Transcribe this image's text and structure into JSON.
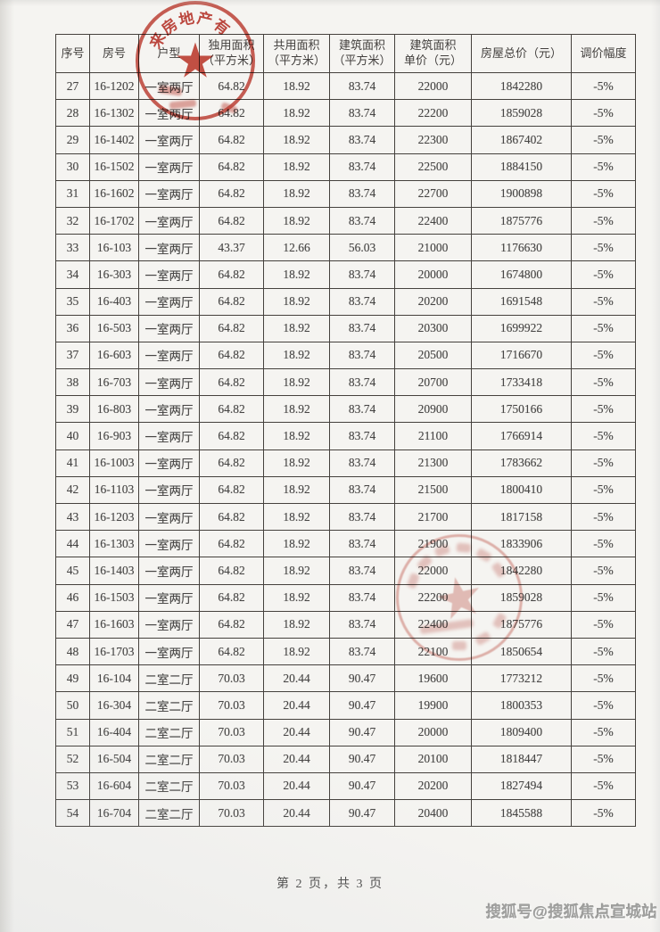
{
  "document": {
    "footer": "第 2 页，共 3 页",
    "watermark": "搜狐号@搜狐焦点宣城站"
  },
  "table": {
    "columns": [
      "序号",
      "房号",
      "户型",
      "独用面积\n（平方米）",
      "共用面积\n（平方米）",
      "建筑面积\n（平方米）",
      "建筑面积\n单价（元）",
      "房屋总价（元）",
      "调价幅度"
    ],
    "rows": [
      [
        "27",
        "16-1202",
        "一室两厅",
        "64.82",
        "18.92",
        "83.74",
        "22000",
        "1842280",
        "-5%"
      ],
      [
        "28",
        "16-1302",
        "一室两厅",
        "64.82",
        "18.92",
        "83.74",
        "22200",
        "1859028",
        "-5%"
      ],
      [
        "29",
        "16-1402",
        "一室两厅",
        "64.82",
        "18.92",
        "83.74",
        "22300",
        "1867402",
        "-5%"
      ],
      [
        "30",
        "16-1502",
        "一室两厅",
        "64.82",
        "18.92",
        "83.74",
        "22500",
        "1884150",
        "-5%"
      ],
      [
        "31",
        "16-1602",
        "一室两厅",
        "64.82",
        "18.92",
        "83.74",
        "22700",
        "1900898",
        "-5%"
      ],
      [
        "32",
        "16-1702",
        "一室两厅",
        "64.82",
        "18.92",
        "83.74",
        "22400",
        "1875776",
        "-5%"
      ],
      [
        "33",
        "16-103",
        "一室两厅",
        "43.37",
        "12.66",
        "56.03",
        "21000",
        "1176630",
        "-5%"
      ],
      [
        "34",
        "16-303",
        "一室两厅",
        "64.82",
        "18.92",
        "83.74",
        "20000",
        "1674800",
        "-5%"
      ],
      [
        "35",
        "16-403",
        "一室两厅",
        "64.82",
        "18.92",
        "83.74",
        "20200",
        "1691548",
        "-5%"
      ],
      [
        "36",
        "16-503",
        "一室两厅",
        "64.82",
        "18.92",
        "83.74",
        "20300",
        "1699922",
        "-5%"
      ],
      [
        "37",
        "16-603",
        "一室两厅",
        "64.82",
        "18.92",
        "83.74",
        "20500",
        "1716670",
        "-5%"
      ],
      [
        "38",
        "16-703",
        "一室两厅",
        "64.82",
        "18.92",
        "83.74",
        "20700",
        "1733418",
        "-5%"
      ],
      [
        "39",
        "16-803",
        "一室两厅",
        "64.82",
        "18.92",
        "83.74",
        "20900",
        "1750166",
        "-5%"
      ],
      [
        "40",
        "16-903",
        "一室两厅",
        "64.82",
        "18.92",
        "83.74",
        "21100",
        "1766914",
        "-5%"
      ],
      [
        "41",
        "16-1003",
        "一室两厅",
        "64.82",
        "18.92",
        "83.74",
        "21300",
        "1783662",
        "-5%"
      ],
      [
        "42",
        "16-1103",
        "一室两厅",
        "64.82",
        "18.92",
        "83.74",
        "21500",
        "1800410",
        "-5%"
      ],
      [
        "43",
        "16-1203",
        "一室两厅",
        "64.82",
        "18.92",
        "83.74",
        "21700",
        "1817158",
        "-5%"
      ],
      [
        "44",
        "16-1303",
        "一室两厅",
        "64.82",
        "18.92",
        "83.74",
        "21900",
        "1833906",
        "-5%"
      ],
      [
        "45",
        "16-1403",
        "一室两厅",
        "64.82",
        "18.92",
        "83.74",
        "22000",
        "1842280",
        "-5%"
      ],
      [
        "46",
        "16-1503",
        "一室两厅",
        "64.82",
        "18.92",
        "83.74",
        "22200",
        "1859028",
        "-5%"
      ],
      [
        "47",
        "16-1603",
        "一室两厅",
        "64.82",
        "18.92",
        "83.74",
        "22400",
        "1875776",
        "-5%"
      ],
      [
        "48",
        "16-1703",
        "一室两厅",
        "64.82",
        "18.92",
        "83.74",
        "22100",
        "1850654",
        "-5%"
      ],
      [
        "49",
        "16-104",
        "二室二厅",
        "70.03",
        "20.44",
        "90.47",
        "19600",
        "1773212",
        "-5%"
      ],
      [
        "50",
        "16-304",
        "二室二厅",
        "70.03",
        "20.44",
        "90.47",
        "19900",
        "1800353",
        "-5%"
      ],
      [
        "51",
        "16-404",
        "二室二厅",
        "70.03",
        "20.44",
        "90.47",
        "20000",
        "1809400",
        "-5%"
      ],
      [
        "52",
        "16-504",
        "二室二厅",
        "70.03",
        "20.44",
        "90.47",
        "20100",
        "1818447",
        "-5%"
      ],
      [
        "53",
        "16-604",
        "二室二厅",
        "70.03",
        "20.44",
        "90.47",
        "20200",
        "1827494",
        "-5%"
      ],
      [
        "54",
        "16-704",
        "二室二厅",
        "70.03",
        "20.44",
        "90.47",
        "20400",
        "1845588",
        "-5%"
      ]
    ]
  },
  "stamps": {
    "top": {
      "arc_text": "来房地产有",
      "color": "#c13d32",
      "legible": true
    },
    "middle": {
      "arc_text": "",
      "color": "#ca685f",
      "legible": false
    }
  },
  "colors": {
    "paper": "#f5f4f1",
    "table_line": "#45413d",
    "text": "#474645",
    "seal_strong": "#c13d32",
    "seal_faded": "#ca685f",
    "watermark": "#a0a09e"
  }
}
